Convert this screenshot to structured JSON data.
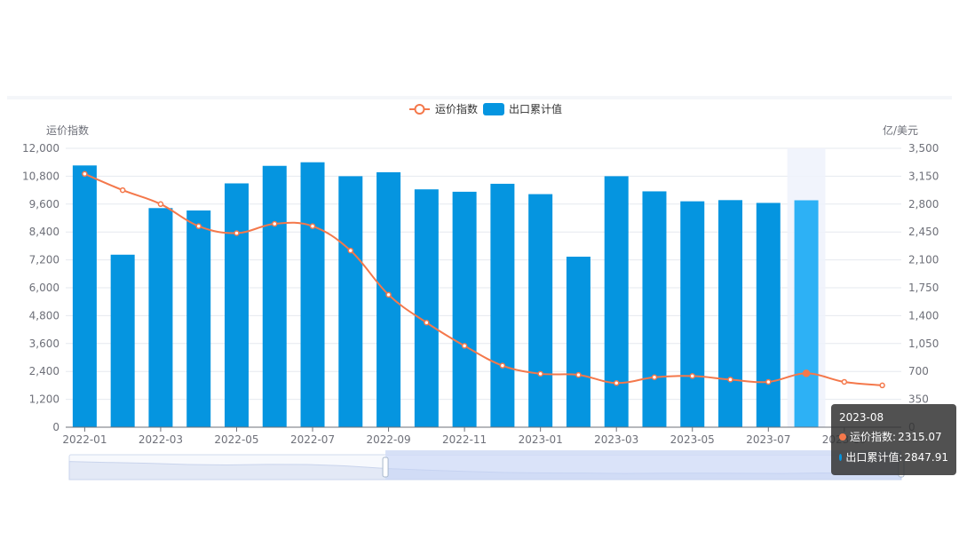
{
  "chart_data": {
    "type": "bar+line",
    "legend_position": "top-center",
    "grid": true,
    "categories": [
      "2022-01",
      "2022-02",
      "2022-03",
      "2022-04",
      "2022-05",
      "2022-06",
      "2022-07",
      "2022-08",
      "2022-09",
      "2022-10",
      "2022-11",
      "2022-12",
      "2023-01",
      "2023-02",
      "2023-03",
      "2023-04",
      "2023-05",
      "2023-06",
      "2023-07",
      "2023-08",
      "2023-09",
      "2023-10"
    ],
    "x_tick_labels": [
      "2022-01",
      "2022-03",
      "2022-05",
      "2022-07",
      "2022-09",
      "2022-11",
      "2023-01",
      "2023-03",
      "2023-05",
      "2023-07",
      "2023-09"
    ],
    "left_axis": {
      "name": "运价指数",
      "min": 0,
      "max": 12000,
      "ticks": [
        "0",
        "1,200",
        "2,400",
        "3,600",
        "4,800",
        "6,000",
        "7,200",
        "8,400",
        "9,600",
        "10,800",
        "12,000"
      ]
    },
    "right_axis": {
      "name": "亿/美元",
      "min": 0,
      "max": 3500,
      "ticks": [
        "0",
        "350",
        "700",
        "1,050",
        "1,400",
        "1,750",
        "2,100",
        "2,450",
        "2,800",
        "3,150",
        "3,500"
      ]
    },
    "series": [
      {
        "name": "出口累计值",
        "type": "bar",
        "axis": "right",
        "color": "#0595e0",
        "values": [
          3285,
          2165,
          2750,
          2720,
          3060,
          3280,
          3325,
          3150,
          3200,
          2985,
          2955,
          3055,
          2925,
          2140,
          3150,
          2960,
          2835,
          2850,
          2815,
          2847.91,
          null,
          null
        ]
      },
      {
        "name": "运价指数",
        "type": "line",
        "axis": "left",
        "color": "#f4784b",
        "values": [
          10900,
          10200,
          9600,
          8650,
          8350,
          8750,
          8650,
          7600,
          5700,
          4500,
          3500,
          2650,
          2300,
          2250,
          1900,
          2150,
          2200,
          2050,
          1950,
          2315.07,
          1950,
          1800
        ]
      }
    ],
    "highlight_index": 19
  },
  "tooltip": {
    "title": "2023-08",
    "rows": [
      {
        "name": "运价指数",
        "value": "2315.07",
        "color": "#f4784b"
      },
      {
        "name": "出口累计值",
        "value": "2847.91",
        "color": "#0595e0"
      }
    ]
  },
  "colors": {
    "bar": "#0595e0",
    "bar_highlight": "#2db1f5",
    "line": "#f4784b",
    "axis_text": "#6e7079",
    "grid": "#e6e9ef"
  }
}
